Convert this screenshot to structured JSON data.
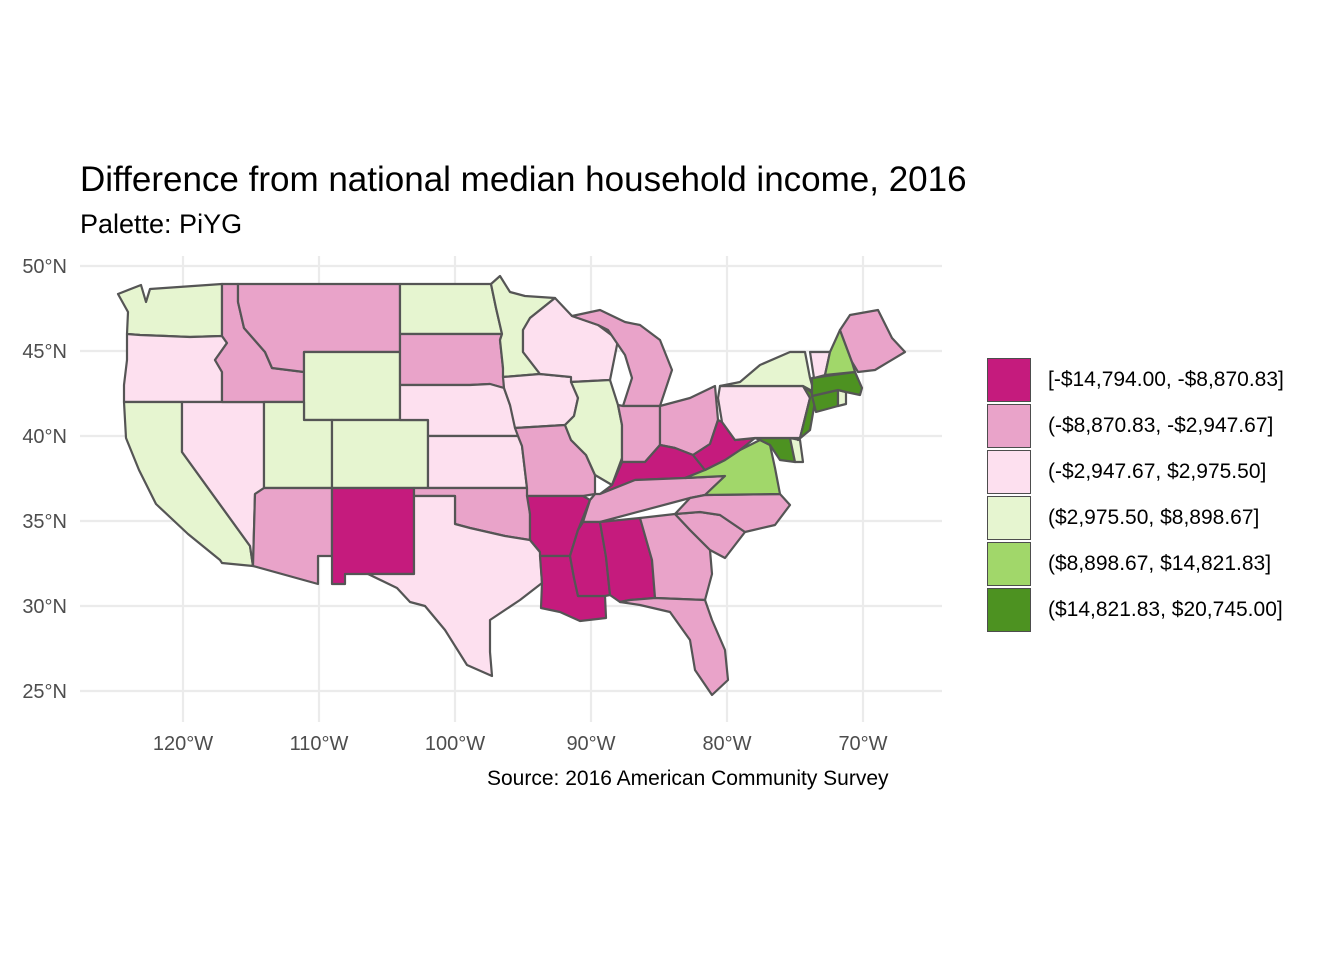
{
  "title": "Difference from national median household income, 2016",
  "subtitle": "Palette: PiYG",
  "caption": "Source: 2016 American Community Survey",
  "axes": {
    "lat_ticks": [
      {
        "value": 50,
        "label": "50°N"
      },
      {
        "value": 45,
        "label": "45°N"
      },
      {
        "value": 40,
        "label": "40°N"
      },
      {
        "value": 35,
        "label": "35°N"
      },
      {
        "value": 30,
        "label": "30°N"
      },
      {
        "value": 25,
        "label": "25°N"
      }
    ],
    "lon_ticks": [
      {
        "value": -120,
        "label": "120°W"
      },
      {
        "value": -110,
        "label": "110°W"
      },
      {
        "value": -100,
        "label": "100°W"
      },
      {
        "value": -90,
        "label": "90°W"
      },
      {
        "value": -80,
        "label": "80°W"
      },
      {
        "value": -70,
        "label": "70°W"
      }
    ],
    "grid": true
  },
  "legend": {
    "placement": "right",
    "items": [
      {
        "label": "[-$14,794.00, -$8,870.83]",
        "color": "#c51b7d"
      },
      {
        "label": "(-$8,870.83, -$2,947.67]",
        "color": "#e9a3c9"
      },
      {
        "label": "(-$2,947.67, $2,975.50]",
        "color": "#fde0ef"
      },
      {
        "label": "($2,975.50, $8,898.67]",
        "color": "#e6f5d0"
      },
      {
        "label": "($8,898.67, $14,821.83]",
        "color": "#a1d76a"
      },
      {
        "label": "($14,821.83, $20,745.00]",
        "color": "#4d9221"
      }
    ]
  },
  "map": {
    "border_color": "#555555",
    "grid_color": "#ebebeb",
    "state_classes": {
      "washington": 3,
      "oregon": 2,
      "california": 3,
      "nevada": 2,
      "idaho": 1,
      "montana": 1,
      "wyoming": 3,
      "utah": 3,
      "colorado": 3,
      "arizona": 1,
      "new-mexico": 0,
      "north-dakota": 3,
      "south-dakota": 1,
      "nebraska": 2,
      "kansas": 2,
      "oklahoma": 1,
      "texas": 2,
      "minnesota": 3,
      "iowa": 2,
      "missouri": 1,
      "arkansas": 0,
      "louisiana": 0,
      "wisconsin": 2,
      "illinois": 3,
      "michigan": 1,
      "indiana": 1,
      "ohio": 1,
      "kentucky": 0,
      "tennessee": 1,
      "mississippi": 0,
      "alabama": 0,
      "georgia": 1,
      "florida": 1,
      "south-carolina": 1,
      "north-carolina": 1,
      "virginia": 4,
      "west-virginia": 0,
      "maryland": 5,
      "delaware": 3,
      "pennsylvania": 2,
      "new-jersey": 5,
      "new-york": 3,
      "connecticut": 5,
      "rhode-island": 3,
      "massachusetts": 5,
      "vermont": 2,
      "new-hampshire": 4,
      "maine": 1
    }
  }
}
